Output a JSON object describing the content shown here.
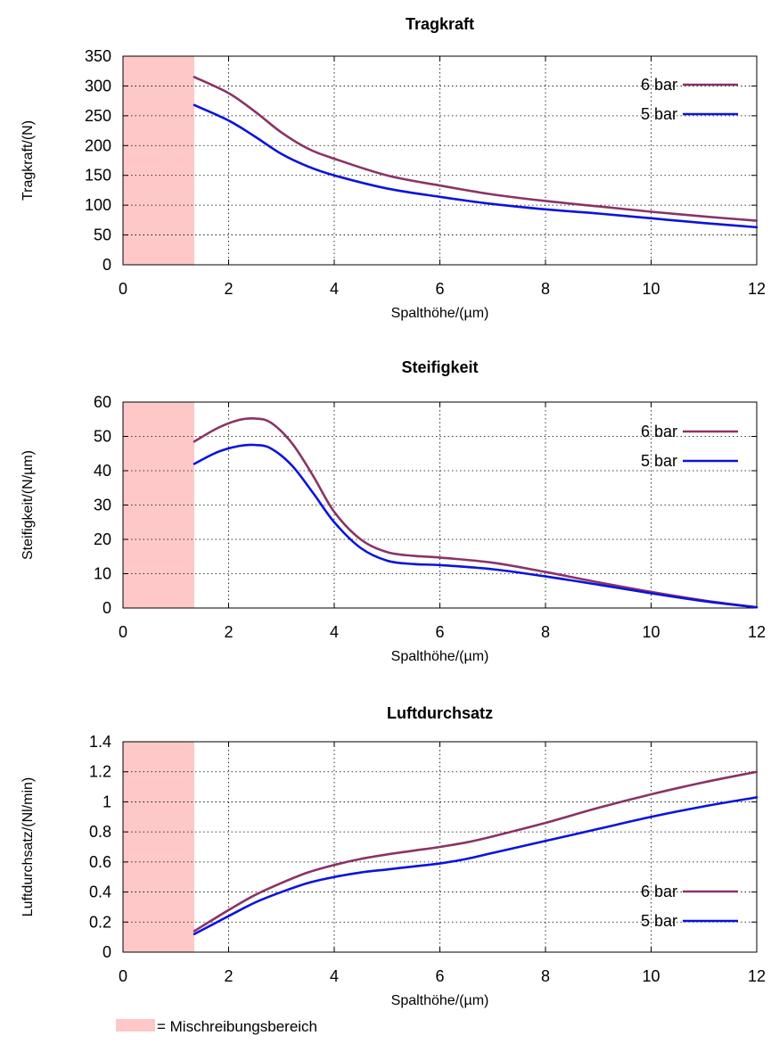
{
  "chart_data": [
    {
      "type": "line",
      "title": "Tragkraft",
      "xlabel": "Spalthöhe/(µm)",
      "ylabel": "Tragkraft/(N)",
      "xlim": [
        0,
        12
      ],
      "ylim": [
        0,
        350
      ],
      "xticks": [
        0,
        2,
        4,
        6,
        8,
        10,
        12
      ],
      "yticks": [
        0,
        50,
        100,
        150,
        200,
        250,
        300,
        350
      ],
      "grid": true,
      "legend_position": "top-right",
      "shaded_region": [
        0,
        1.35
      ],
      "series": [
        {
          "name": "6 bar",
          "color": "#8b3366",
          "x": [
            1.35,
            2,
            2.5,
            3,
            3.5,
            4,
            5,
            6,
            7,
            8,
            9,
            10,
            11,
            12
          ],
          "y": [
            315,
            288,
            257,
            222,
            195,
            178,
            150,
            133,
            118,
            107,
            98,
            89,
            81,
            74
          ]
        },
        {
          "name": "5 bar",
          "color": "#0a14dc",
          "x": [
            1.35,
            2,
            2.5,
            3,
            3.5,
            4,
            5,
            6,
            7,
            8,
            9,
            10,
            11,
            12
          ],
          "y": [
            268,
            242,
            215,
            186,
            165,
            150,
            128,
            114,
            102,
            93,
            86,
            78,
            70,
            63
          ]
        }
      ]
    },
    {
      "type": "line",
      "title": "Steifigkeit",
      "xlabel": "Spalthöhe/(µm)",
      "ylabel": "Steifigkeit/(N/µm)",
      "xlim": [
        0,
        12
      ],
      "ylim": [
        0,
        60
      ],
      "xticks": [
        0,
        2,
        4,
        6,
        8,
        10,
        12
      ],
      "yticks": [
        0,
        10,
        20,
        30,
        40,
        50,
        60
      ],
      "grid": true,
      "legend_position": "top-right",
      "shaded_region": [
        0,
        1.35
      ],
      "series": [
        {
          "name": "6 bar",
          "color": "#8b3366",
          "x": [
            1.35,
            1.8,
            2.2,
            2.5,
            2.8,
            3.2,
            3.6,
            4,
            4.5,
            5,
            5.5,
            6,
            7,
            8,
            9,
            10,
            11,
            12
          ],
          "y": [
            48.5,
            52.5,
            54.8,
            55.2,
            54,
            48,
            38.5,
            28,
            20,
            16.3,
            15.2,
            14.7,
            13.2,
            10.5,
            7.5,
            4.7,
            2.2,
            0.2
          ]
        },
        {
          "name": "5 bar",
          "color": "#0a14dc",
          "x": [
            1.35,
            1.8,
            2.2,
            2.5,
            2.8,
            3.2,
            3.6,
            4,
            4.5,
            5,
            5.5,
            6,
            7,
            8,
            9,
            10,
            11,
            12
          ],
          "y": [
            42,
            45.5,
            47.2,
            47.5,
            46.5,
            41.5,
            33.5,
            25,
            17.5,
            13.8,
            12.8,
            12.5,
            11.3,
            9.2,
            6.8,
            4.3,
            2,
            0.2
          ]
        }
      ]
    },
    {
      "type": "line",
      "title": "Luftdurchsatz",
      "xlabel": "Spalthöhe/(µm)",
      "ylabel": "Luftdurchsatz/(Nl/min)",
      "xlim": [
        0,
        12
      ],
      "ylim": [
        0,
        1.4
      ],
      "xticks": [
        0,
        2,
        4,
        6,
        8,
        10,
        12
      ],
      "yticks": [
        0,
        0.2,
        0.4,
        0.6,
        0.8,
        1,
        1.2,
        1.4
      ],
      "ytick_labels": [
        "0",
        "0.2",
        "0.4",
        "0.6",
        "0.8",
        "1",
        "1.2",
        "1.4"
      ],
      "grid": true,
      "legend_position": "bottom-right",
      "shaded_region": [
        0,
        1.35
      ],
      "series": [
        {
          "name": "6 bar",
          "color": "#8b3366",
          "x": [
            1.35,
            2,
            2.5,
            3,
            3.5,
            4,
            4.5,
            5,
            5.5,
            6,
            6.5,
            7,
            8,
            9,
            10,
            11,
            12
          ],
          "y": [
            0.14,
            0.28,
            0.38,
            0.46,
            0.53,
            0.58,
            0.62,
            0.65,
            0.675,
            0.7,
            0.73,
            0.77,
            0.86,
            0.96,
            1.05,
            1.13,
            1.2
          ]
        },
        {
          "name": "5 bar",
          "color": "#0a14dc",
          "x": [
            1.35,
            2,
            2.5,
            3,
            3.5,
            4,
            4.5,
            5,
            5.5,
            6,
            6.5,
            7,
            8,
            9,
            10,
            11,
            12
          ],
          "y": [
            0.12,
            0.24,
            0.33,
            0.4,
            0.46,
            0.5,
            0.53,
            0.55,
            0.57,
            0.59,
            0.62,
            0.66,
            0.74,
            0.82,
            0.9,
            0.97,
            1.03
          ]
        }
      ]
    }
  ],
  "footer": {
    "legend_text": "= Mischreibungsbereich",
    "swatch_color": "#ffc8c8"
  }
}
